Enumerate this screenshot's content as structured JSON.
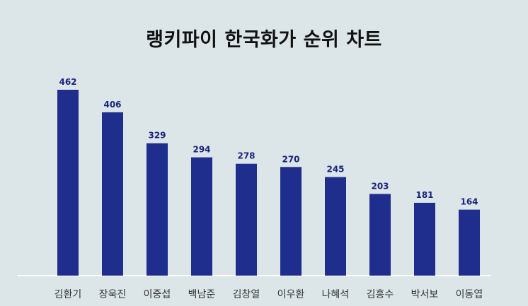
{
  "chart_data": {
    "type": "bar",
    "title": "랭키파이 한국화가 순위 차트",
    "categories": [
      "김환기",
      "장욱진",
      "이중섭",
      "백남준",
      "김창열",
      "이우환",
      "나혜석",
      "김흥수",
      "박서보",
      "이동엽"
    ],
    "values": [
      462,
      406,
      329,
      294,
      278,
      270,
      245,
      203,
      181,
      164
    ],
    "xlabel": "",
    "ylabel": "",
    "ylim": [
      0,
      462
    ],
    "grid": false,
    "legend": "none",
    "data_labels": true
  },
  "colors": {
    "background": "#dce6e8",
    "bar": "#1f2d8c",
    "value_label": "#1a237e",
    "baseline": "#ffffff",
    "title": "#111111"
  }
}
